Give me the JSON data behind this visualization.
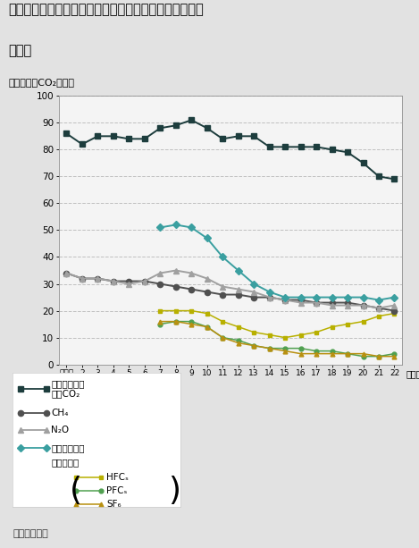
{
  "title_line1": "各種温室効果ガス（エネルギー起源二酸化炭素以外）の",
  "title_line2": "排出量",
  "ylabel": "（百万トンCO₂換算）",
  "source": "資料：環境省",
  "x_labels": [
    "基平成\n準\n年",
    "2",
    "3",
    "4",
    "5",
    "6",
    "7",
    "8",
    "9",
    "10",
    "11",
    "12",
    "13",
    "14",
    "15",
    "16",
    "17",
    "18",
    "19",
    "20",
    "21",
    "22"
  ],
  "x_positions": [
    0,
    1,
    2,
    3,
    4,
    5,
    6,
    7,
    8,
    9,
    10,
    11,
    12,
    13,
    14,
    15,
    16,
    17,
    18,
    19,
    20,
    21
  ],
  "non_energy_co2": [
    86,
    82,
    85,
    85,
    84,
    84,
    88,
    89,
    91,
    88,
    84,
    85,
    85,
    81,
    81,
    81,
    81,
    80,
    79,
    75,
    70,
    69
  ],
  "ch4": [
    34,
    32,
    32,
    31,
    31,
    31,
    30,
    29,
    28,
    27,
    26,
    26,
    25,
    25,
    24,
    24,
    23,
    23,
    23,
    22,
    21,
    20
  ],
  "n2o": [
    34,
    32,
    32,
    31,
    30,
    31,
    34,
    35,
    34,
    32,
    29,
    28,
    27,
    25,
    24,
    23,
    23,
    22,
    22,
    22,
    21,
    22
  ],
  "daifro_x": [
    6,
    7,
    8,
    9,
    10,
    11,
    12,
    13,
    14,
    15,
    16,
    17,
    18,
    19,
    20,
    21
  ],
  "daifro": [
    51,
    52,
    51,
    47,
    40,
    35,
    30,
    27,
    25,
    25,
    25,
    25,
    25,
    25,
    24,
    25
  ],
  "hfc_x": [
    6,
    7,
    8,
    9,
    10,
    11,
    12,
    13,
    14,
    15,
    16,
    17,
    18,
    19,
    20,
    21
  ],
  "hfc": [
    20,
    20,
    20,
    19,
    16,
    14,
    12,
    11,
    10,
    11,
    12,
    14,
    15,
    16,
    18,
    19
  ],
  "pfc_x": [
    6,
    7,
    8,
    9,
    10,
    11,
    12,
    13,
    14,
    15,
    16,
    17,
    18,
    19,
    20,
    21
  ],
  "pfc": [
    15,
    16,
    16,
    14,
    10,
    9,
    7,
    6,
    6,
    6,
    5,
    5,
    4,
    3,
    3,
    4
  ],
  "sf6_x": [
    6,
    7,
    8,
    9,
    10,
    11,
    12,
    13,
    14,
    15,
    16,
    17,
    18,
    19,
    20,
    21
  ],
  "sf6": [
    16,
    16,
    15,
    14,
    10,
    8,
    7,
    6,
    5,
    4,
    4,
    4,
    4,
    4,
    3,
    3
  ],
  "color_non_energy": "#1d3d3d",
  "color_ch4": "#505050",
  "color_n2o": "#a0a0a0",
  "color_daifro": "#3a9fa0",
  "color_hfc": "#b8b000",
  "color_pfc": "#50a050",
  "color_sf6": "#b89010",
  "ylim": [
    0,
    100
  ],
  "yticks": [
    0,
    10,
    20,
    30,
    40,
    50,
    60,
    70,
    80,
    90,
    100
  ],
  "bg_color": "#e2e2e2",
  "chart_bg": "#f4f4f4",
  "grid_color": "#c0c0c0"
}
